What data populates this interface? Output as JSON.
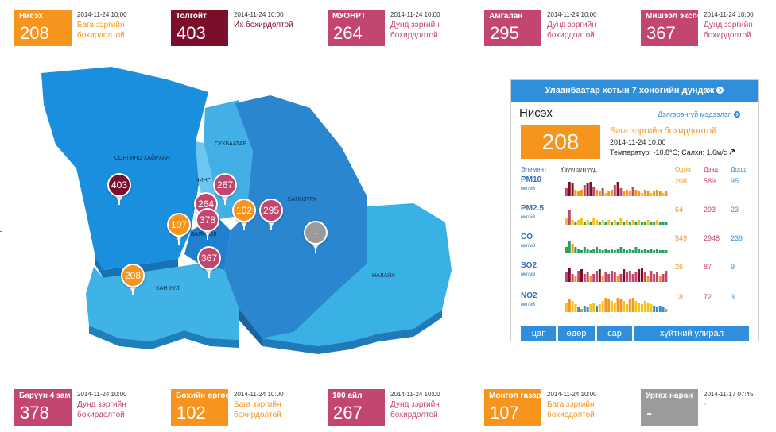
{
  "top_stations": [
    {
      "name": "Нисэх",
      "value": "208",
      "time": "2014-11-24 10:00",
      "status": "Бага зэргийн бохирдолтой",
      "color": "#f7941d",
      "status_color": "#f7941d"
    },
    {
      "name": "Толгойт",
      "value": "403",
      "time": "2014-11-24 10:00",
      "status": "Их бохирдолтой",
      "color": "#7b0f2b",
      "status_color": "#7b0f2b"
    },
    {
      "name": "МУОНРТ",
      "value": "264",
      "time": "2014-11-24 10:00",
      "status": "Дунд зэргийн бохирдолтой",
      "color": "#c3466f",
      "status_color": "#c3466f"
    },
    {
      "name": "Амгалан",
      "value": "295",
      "time": "2014-11-24 10:00",
      "status": "Дунд зэргийн бохирдолтой",
      "color": "#c3466f",
      "status_color": "#c3466f"
    },
    {
      "name": "Мишээл экспо",
      "value": "367",
      "time": "2014-11-24 10:00",
      "status": "Дунд зэргийн бохирдолтой",
      "color": "#c3466f",
      "status_color": "#c3466f"
    }
  ],
  "bottom_stations": [
    {
      "name": "Баруун 4 зам",
      "value": "378",
      "time": "2014-11-24 10:00",
      "status": "Дунд зэргийн бохирдолтой",
      "color": "#c3466f",
      "status_color": "#c3466f"
    },
    {
      "name": "Бөхийн өргөө",
      "value": "102",
      "time": "2014-11-24 10:00",
      "status": "Бага зэргийн бохирдолтой",
      "color": "#f7941d",
      "status_color": "#f7941d"
    },
    {
      "name": "100 айл",
      "value": "267",
      "time": "2014-11-24 10:00",
      "status": "Дунд зэргийн бохирдолтой",
      "color": "#c3466f",
      "status_color": "#c3466f"
    },
    {
      "name": "Монгол газар",
      "value": "107",
      "time": "2014-11-24 10:00",
      "status": "Бага зэргийн бохирдолтой",
      "color": "#f7941d",
      "status_color": "#f7941d"
    },
    {
      "name": "Ургах наран",
      "value": "-",
      "time": "2014-11-17 07:45",
      "status": "-",
      "color": "#9b9b9b",
      "status_color": "#9b9b9b"
    }
  ],
  "map": {
    "districts": [
      "СОНГИНО ХАЙРХАН",
      "СҮХБААТАР",
      "ЧИНГ",
      "БАЯНЗҮРХ",
      "БАЯНГОЛ",
      "ХАН УУЛ",
      "НАЛАЙХ"
    ],
    "markers": [
      {
        "value": "403",
        "color": "#7b0f2b"
      },
      {
        "value": "267",
        "color": "#c3466f"
      },
      {
        "value": "264",
        "color": "#c3466f"
      },
      {
        "value": "378",
        "color": "#c3466f"
      },
      {
        "value": "102",
        "color": "#f7941d"
      },
      {
        "value": "295",
        "color": "#c3466f"
      },
      {
        "value": "107",
        "color": "#f7941d"
      },
      {
        "value": "-",
        "color": "#9b9b9b"
      },
      {
        "value": "367",
        "color": "#c3466f"
      },
      {
        "value": "208",
        "color": "#f7941d"
      }
    ]
  },
  "panel": {
    "header": "Улаанбаатар хотын 7 хоногийн дундаж",
    "header_icon": "chevron-circle-right-icon",
    "station": "Нисэх",
    "detail_link": "Дэлгэрэнгүй мэдээлэл",
    "aqi": "208",
    "status": "Бага зэргийн бохирдолтой",
    "time": "2014-11-24 10:00",
    "weather": "Температур: -10.8°C; Салхи: 1.6м/с",
    "columns": {
      "element": "Элемент",
      "trend": "Үзүүлэлтүүд",
      "current": "Одоо",
      "max": "Дээд",
      "min": "Доод"
    },
    "pollutants": [
      {
        "name": "PM10",
        "unit": "мкг/м3",
        "current": "208",
        "max": "589",
        "min": "95",
        "bars": [
          0.5,
          0.9,
          0.8,
          0.4,
          0.3,
          0.4,
          0.7,
          0.8,
          0.9,
          0.6,
          0.4,
          0.3,
          0.5,
          0.2,
          0.3,
          0.4,
          0.7,
          0.9,
          0.5,
          0.3,
          0.4,
          0.3,
          0.6,
          0.4,
          0.3,
          0.2,
          0.4,
          0.3,
          0.2,
          0.3,
          0.4,
          0.3,
          0.2,
          0.3
        ]
      },
      {
        "name": "PM2.5",
        "unit": "мкг/м3",
        "current": "64",
        "max": "293",
        "min": "23",
        "bars": [
          0.4,
          0.9,
          0.3,
          0.2,
          0.3,
          0.4,
          0.2,
          0.3,
          0.2,
          0.4,
          0.3,
          0.2,
          0.3,
          0.2,
          0.3,
          0.2,
          0.3,
          0.2,
          0.4,
          0.2,
          0.3,
          0.2,
          0.3,
          0.2,
          0.3,
          0.2,
          0.2,
          0.3,
          0.2,
          0.2,
          0.3,
          0.2,
          0.2,
          0.2
        ]
      },
      {
        "name": "CO",
        "unit": "мкг/м3",
        "current": "549",
        "max": "2948",
        "min": "239",
        "bars": [
          0.4,
          0.8,
          0.6,
          0.4,
          0.3,
          0.2,
          0.4,
          0.3,
          0.2,
          0.3,
          0.4,
          0.3,
          0.2,
          0.3,
          0.2,
          0.3,
          0.2,
          0.3,
          0.4,
          0.3,
          0.2,
          0.3,
          0.2,
          0.4,
          0.3,
          0.2,
          0.3,
          0.2,
          0.3,
          0.2,
          0.3,
          0.2,
          0.2,
          0.2
        ]
      },
      {
        "name": "SO2",
        "unit": "мкг/м3",
        "current": "26",
        "max": "87",
        "min": "9",
        "bars": [
          0.6,
          0.9,
          0.5,
          0.4,
          0.7,
          0.8,
          0.5,
          0.6,
          0.4,
          0.5,
          0.7,
          0.8,
          0.4,
          0.6,
          0.5,
          0.7,
          0.6,
          0.4,
          0.5,
          0.8,
          0.6,
          0.7,
          0.5,
          0.6,
          0.8,
          0.9,
          0.6,
          0.4,
          0.7,
          0.5,
          0.6,
          0.4,
          0.5,
          0.7
        ]
      },
      {
        "name": "NO2",
        "unit": "мкг/м3",
        "current": "18",
        "max": "72",
        "min": "3",
        "bars": [
          0.6,
          0.8,
          0.7,
          0.5,
          0.3,
          0.2,
          0.4,
          0.3,
          0.5,
          0.6,
          0.4,
          0.5,
          0.7,
          0.9,
          0.8,
          0.7,
          0.6,
          0.9,
          0.8,
          0.7,
          0.5,
          0.8,
          0.9,
          0.7,
          0.6,
          0.5,
          0.7,
          0.6,
          0.5,
          0.4,
          0.3,
          0.4,
          0.3,
          0.2
        ]
      }
    ],
    "buttons": [
      "цаг",
      "өдөр",
      "сар",
      "хүйтний улирал"
    ]
  },
  "colors": {
    "accent": "#2f8fdc",
    "good": "#2aa05e",
    "moderate": "#f7941d",
    "unhealthy": "#c3466f",
    "very_unhealthy": "#7b0f2b",
    "none": "#9b9b9b"
  }
}
